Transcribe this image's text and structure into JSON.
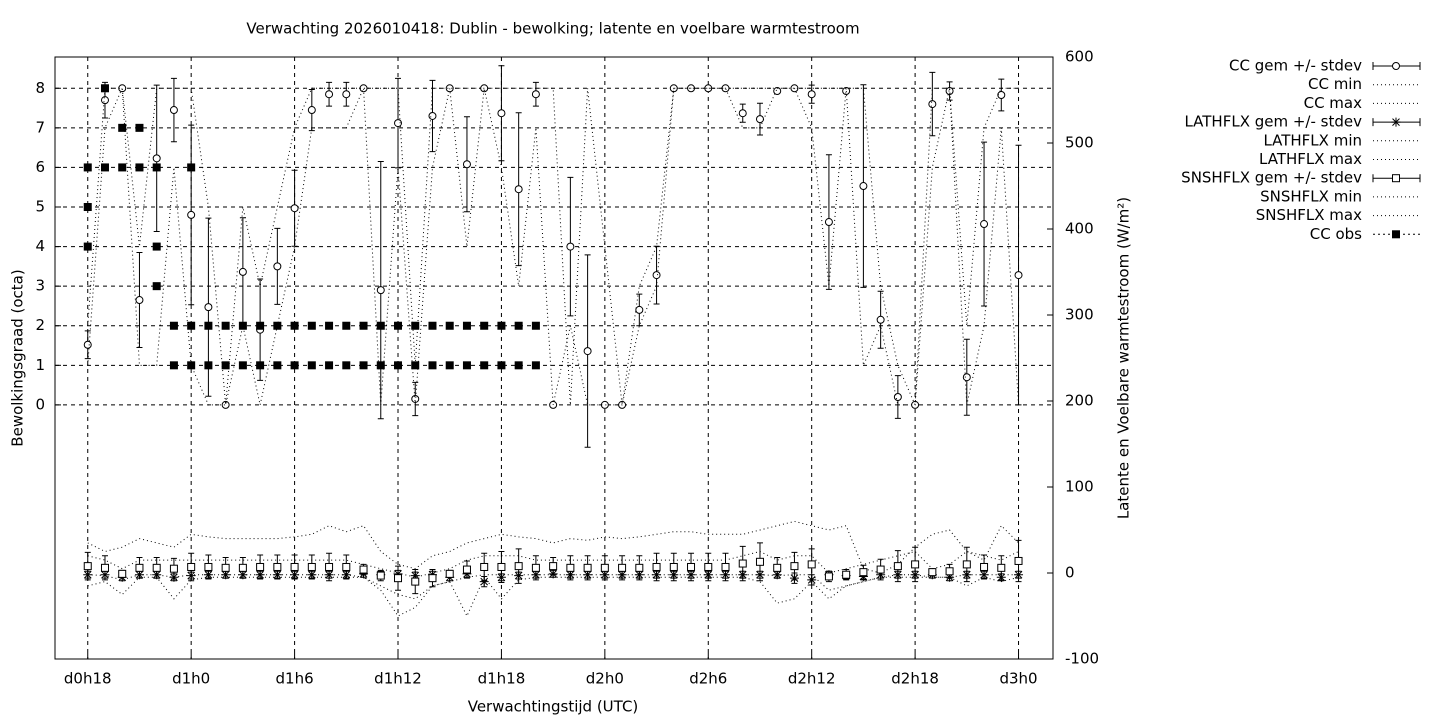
{
  "chart_data": {
    "type": "errorbar",
    "title": "Verwachting 2026010418: Dublin - bewolking; latente en voelbare warmtestroom",
    "x_label": "Verwachtingstijd (UTC)",
    "y_label": "Bewolkingsgraad (octa)",
    "y2_label": "Latente en Voelbare warmtestroom (W/m²)",
    "xlim": [
      16.1,
      74
    ],
    "ylim": [
      -6.42,
      8.79
    ],
    "y2lim": [
      -100,
      600
    ],
    "xticks": [
      {
        "value": 18,
        "label": "d0h18"
      },
      {
        "value": 24,
        "label": "d1h0"
      },
      {
        "value": 30,
        "label": "d1h6"
      },
      {
        "value": 36,
        "label": "d1h12"
      },
      {
        "value": 42,
        "label": "d1h18"
      },
      {
        "value": 48,
        "label": "d2h0"
      },
      {
        "value": 54,
        "label": "d2h6"
      },
      {
        "value": 60,
        "label": "d2h12"
      },
      {
        "value": 66,
        "label": "d2h18"
      },
      {
        "value": 72,
        "label": "d3h0"
      }
    ],
    "yticks": [
      0,
      1,
      2,
      3,
      4,
      5,
      6,
      7,
      8
    ],
    "y2ticks": [
      -100,
      0,
      100,
      200,
      300,
      400,
      500,
      600
    ],
    "grid": true,
    "legend": "outside-top-right",
    "x": [
      18,
      19,
      20,
      21,
      22,
      23,
      24,
      25,
      26,
      27,
      28,
      29,
      30,
      31,
      32,
      33,
      34,
      35,
      36,
      37,
      38,
      39,
      40,
      41,
      42,
      43,
      44,
      45,
      46,
      47,
      48,
      49,
      50,
      51,
      52,
      53,
      54,
      55,
      56,
      57,
      58,
      59,
      60,
      61,
      62,
      63,
      64,
      65,
      66,
      67,
      68,
      69,
      70,
      71,
      72
    ],
    "series": [
      {
        "name": "CC gem +/- stdev",
        "color": "#000000",
        "marker": "circle",
        "axis": "y",
        "values": [
          1.52,
          7.7,
          8,
          2.65,
          6.23,
          7.45,
          4.8,
          2.47,
          0,
          3.36,
          1.9,
          3.5,
          4.97,
          7.45,
          7.85,
          7.85,
          8,
          2.9,
          7.12,
          0.15,
          7.3,
          8,
          6.08,
          8,
          7.37,
          5.45,
          7.85,
          0,
          4,
          1.36,
          0,
          0,
          2.4,
          3.28,
          8,
          8,
          8,
          8,
          7.37,
          7.22,
          7.93,
          8,
          7.85,
          4.62,
          7.93,
          5.53,
          2.15,
          0.2,
          0,
          7.6,
          7.93,
          0.7,
          4.57,
          7.83,
          3.28
        ],
        "stdev": [
          0.35,
          0.45,
          0,
          1.2,
          1.85,
          0.8,
          2.27,
          2.25,
          0,
          1.37,
          1.28,
          0.96,
          0.96,
          0.52,
          0.3,
          0.3,
          0,
          3.25,
          1.13,
          0.42,
          0.9,
          0,
          1.2,
          0,
          1.2,
          1.93,
          0.3,
          0,
          1.75,
          2.43,
          0,
          0,
          0.4,
          0.73,
          0,
          0,
          0,
          0,
          0.23,
          0.4,
          0.03,
          0,
          0.23,
          1.7,
          0.03,
          2.56,
          0.72,
          0.54,
          0,
          0.8,
          0.23,
          0.96,
          2.07,
          0.4,
          3.28
        ]
      },
      {
        "name": "CC min",
        "color": "#000000",
        "dash": "dotted",
        "axis": "y",
        "values": [
          1,
          7,
          8,
          1,
          1,
          6,
          1,
          0,
          0,
          2,
          0,
          2,
          4,
          7,
          7,
          7,
          8,
          0,
          6,
          0,
          6,
          8,
          4,
          8,
          6,
          3,
          7,
          0,
          2,
          0,
          0,
          0,
          2,
          3,
          8,
          8,
          8,
          8,
          7,
          7,
          8,
          8,
          7,
          3,
          8,
          1,
          2,
          0,
          0,
          6,
          8,
          0,
          2,
          7,
          0
        ]
      },
      {
        "name": "CC max",
        "color": "#000000",
        "dash": "dotted",
        "axis": "y",
        "values": [
          2,
          8,
          8,
          4,
          8,
          8,
          8,
          5,
          0,
          5,
          3,
          5,
          7,
          8,
          8,
          8,
          8,
          8,
          8,
          1,
          8,
          8,
          8,
          8,
          8,
          8,
          8,
          8,
          0,
          8,
          4,
          0,
          3,
          4,
          8,
          8,
          8,
          8,
          8,
          8,
          8,
          8,
          8,
          8,
          8,
          8,
          3,
          1,
          0,
          8,
          8,
          2,
          7,
          8,
          8
        ]
      },
      {
        "name": "LATHFLX gem +/- stdev",
        "color": "#000000",
        "marker": "star",
        "axis": "y2",
        "values": [
          -2,
          -2,
          -5,
          -2,
          -2,
          -5,
          -3,
          -2,
          -2,
          -2,
          -2,
          -2,
          -2,
          -2,
          -2,
          -2,
          -1,
          -2,
          -1,
          -3,
          -2,
          -5,
          -1,
          -10,
          -5,
          -3,
          -2,
          -1,
          -2,
          -2,
          -2,
          -2,
          -2,
          -2,
          -2,
          -2,
          -2,
          -2,
          -2,
          -2,
          -2,
          -6,
          -8,
          -2,
          -3,
          -4,
          -2,
          -2,
          -2,
          -2,
          -5,
          -2,
          -2,
          -5,
          -2
        ],
        "stdev": [
          4,
          4,
          4,
          4,
          4,
          4,
          4,
          4,
          4,
          4,
          4,
          4,
          4,
          4,
          4,
          4,
          4,
          4,
          4,
          4,
          4,
          4,
          4,
          6,
          4,
          4,
          4,
          4,
          4,
          4,
          4,
          4,
          4,
          4,
          4,
          4,
          4,
          4,
          4,
          4,
          4,
          6,
          6,
          4,
          4,
          4,
          4,
          4,
          4,
          4,
          4,
          4,
          4,
          4,
          4
        ]
      },
      {
        "name": "LATHFLX min",
        "color": "#000000",
        "dash": "dotted",
        "axis": "y2",
        "values": [
          -15,
          -10,
          -25,
          -5,
          -5,
          -30,
          -8,
          -5,
          -5,
          -5,
          -5,
          -5,
          -5,
          -5,
          -5,
          -5,
          -5,
          -20,
          -50,
          -40,
          -15,
          -10,
          -50,
          -5,
          -30,
          -8,
          -5,
          -5,
          -5,
          -5,
          -5,
          -5,
          -5,
          -5,
          -5,
          -5,
          -5,
          -5,
          -5,
          -10,
          -35,
          -30,
          -10,
          -30,
          -15,
          -10,
          -5,
          -5,
          -5,
          -5,
          -5,
          -15,
          -5,
          -10,
          -5
        ]
      },
      {
        "name": "LATHFLX max",
        "color": "#000000",
        "dash": "dotted",
        "axis": "y2",
        "values": [
          35,
          25,
          30,
          40,
          35,
          30,
          45,
          42,
          40,
          40,
          40,
          40,
          42,
          45,
          55,
          48,
          55,
          25,
          10,
          5,
          20,
          25,
          35,
          40,
          45,
          42,
          40,
          35,
          40,
          38,
          42,
          40,
          42,
          45,
          48,
          48,
          45,
          45,
          45,
          50,
          55,
          60,
          55,
          50,
          55,
          5,
          0,
          10,
          30,
          45,
          50,
          25,
          15,
          55,
          35
        ]
      },
      {
        "name": "SNSHFLX gem +/- stdev",
        "color": "#000000",
        "marker": "square",
        "axis": "y2",
        "values": [
          8,
          6,
          -1,
          6,
          6,
          5,
          7,
          7,
          6,
          6,
          7,
          7,
          7,
          7,
          7,
          7,
          4,
          -3,
          -6,
          -10,
          -6,
          -1,
          4,
          7,
          7,
          8,
          6,
          8,
          6,
          6,
          6,
          6,
          6,
          7,
          7,
          7,
          7,
          7,
          11,
          13,
          6,
          8,
          10,
          -4,
          -2,
          1,
          4,
          8,
          10,
          1,
          2,
          10,
          7,
          6,
          14
        ],
        "stdev": [
          16,
          14,
          4,
          12,
          12,
          12,
          16,
          14,
          12,
          12,
          14,
          14,
          14,
          14,
          16,
          14,
          6,
          6,
          14,
          14,
          10,
          4,
          10,
          16,
          18,
          20,
          14,
          10,
          14,
          14,
          14,
          14,
          14,
          16,
          16,
          16,
          16,
          16,
          20,
          22,
          12,
          16,
          18,
          6,
          6,
          8,
          12,
          18,
          20,
          4,
          8,
          20,
          14,
          14,
          24
        ]
      },
      {
        "name": "SNSHFLX min",
        "color": "#000000",
        "dash": "dotted",
        "axis": "y2",
        "values": [
          -2,
          -3,
          -8,
          -2,
          -2,
          -5,
          -2,
          -2,
          -2,
          -2,
          -2,
          -2,
          -2,
          -2,
          -2,
          -2,
          -5,
          -15,
          -25,
          -30,
          -15,
          -10,
          -5,
          -2,
          -2,
          -2,
          -2,
          -2,
          -2,
          -2,
          -2,
          -2,
          -2,
          -2,
          -2,
          -2,
          -2,
          -2,
          -2,
          -2,
          -3,
          -2,
          -2,
          -20,
          -15,
          -10,
          -5,
          -2,
          -2,
          -5,
          -5,
          -2,
          -2,
          -2,
          -2
        ]
      },
      {
        "name": "SNSHFLX max",
        "color": "#000000",
        "dash": "dotted",
        "axis": "y2",
        "values": [
          20,
          15,
          5,
          15,
          15,
          15,
          15,
          15,
          15,
          15,
          15,
          15,
          15,
          15,
          15,
          15,
          10,
          5,
          0,
          -5,
          0,
          5,
          15,
          20,
          20,
          20,
          15,
          15,
          15,
          15,
          15,
          15,
          15,
          15,
          15,
          15,
          15,
          15,
          20,
          25,
          15,
          20,
          20,
          0,
          5,
          10,
          15,
          20,
          25,
          5,
          10,
          25,
          20,
          15,
          25
        ]
      },
      {
        "name": "CC obs",
        "color": "#000000",
        "marker": "filled-square",
        "axis": "y",
        "x": [
          18,
          18,
          18,
          19,
          19,
          20,
          20,
          21,
          21,
          22,
          22,
          22,
          23,
          23,
          24,
          24,
          24,
          25,
          25,
          26,
          26,
          27,
          27,
          28,
          28,
          29,
          29,
          30,
          30,
          31,
          31,
          32,
          32,
          33,
          33,
          34,
          34,
          35,
          35,
          36,
          36,
          37,
          37,
          38,
          38,
          39,
          39,
          40,
          40,
          41,
          41,
          42,
          42,
          43,
          43,
          44,
          44
        ],
        "values": [
          6,
          5,
          4,
          8,
          6,
          7,
          6,
          7,
          6,
          6,
          4,
          3,
          2,
          1,
          6,
          2,
          1,
          2,
          1,
          2,
          1,
          2,
          1,
          2,
          1,
          2,
          1,
          2,
          1,
          2,
          1,
          2,
          1,
          2,
          1,
          2,
          1,
          2,
          1,
          2,
          1,
          2,
          1,
          2,
          1,
          2,
          1,
          2,
          1,
          2,
          1,
          2,
          1,
          2,
          1,
          2,
          1
        ]
      }
    ]
  }
}
